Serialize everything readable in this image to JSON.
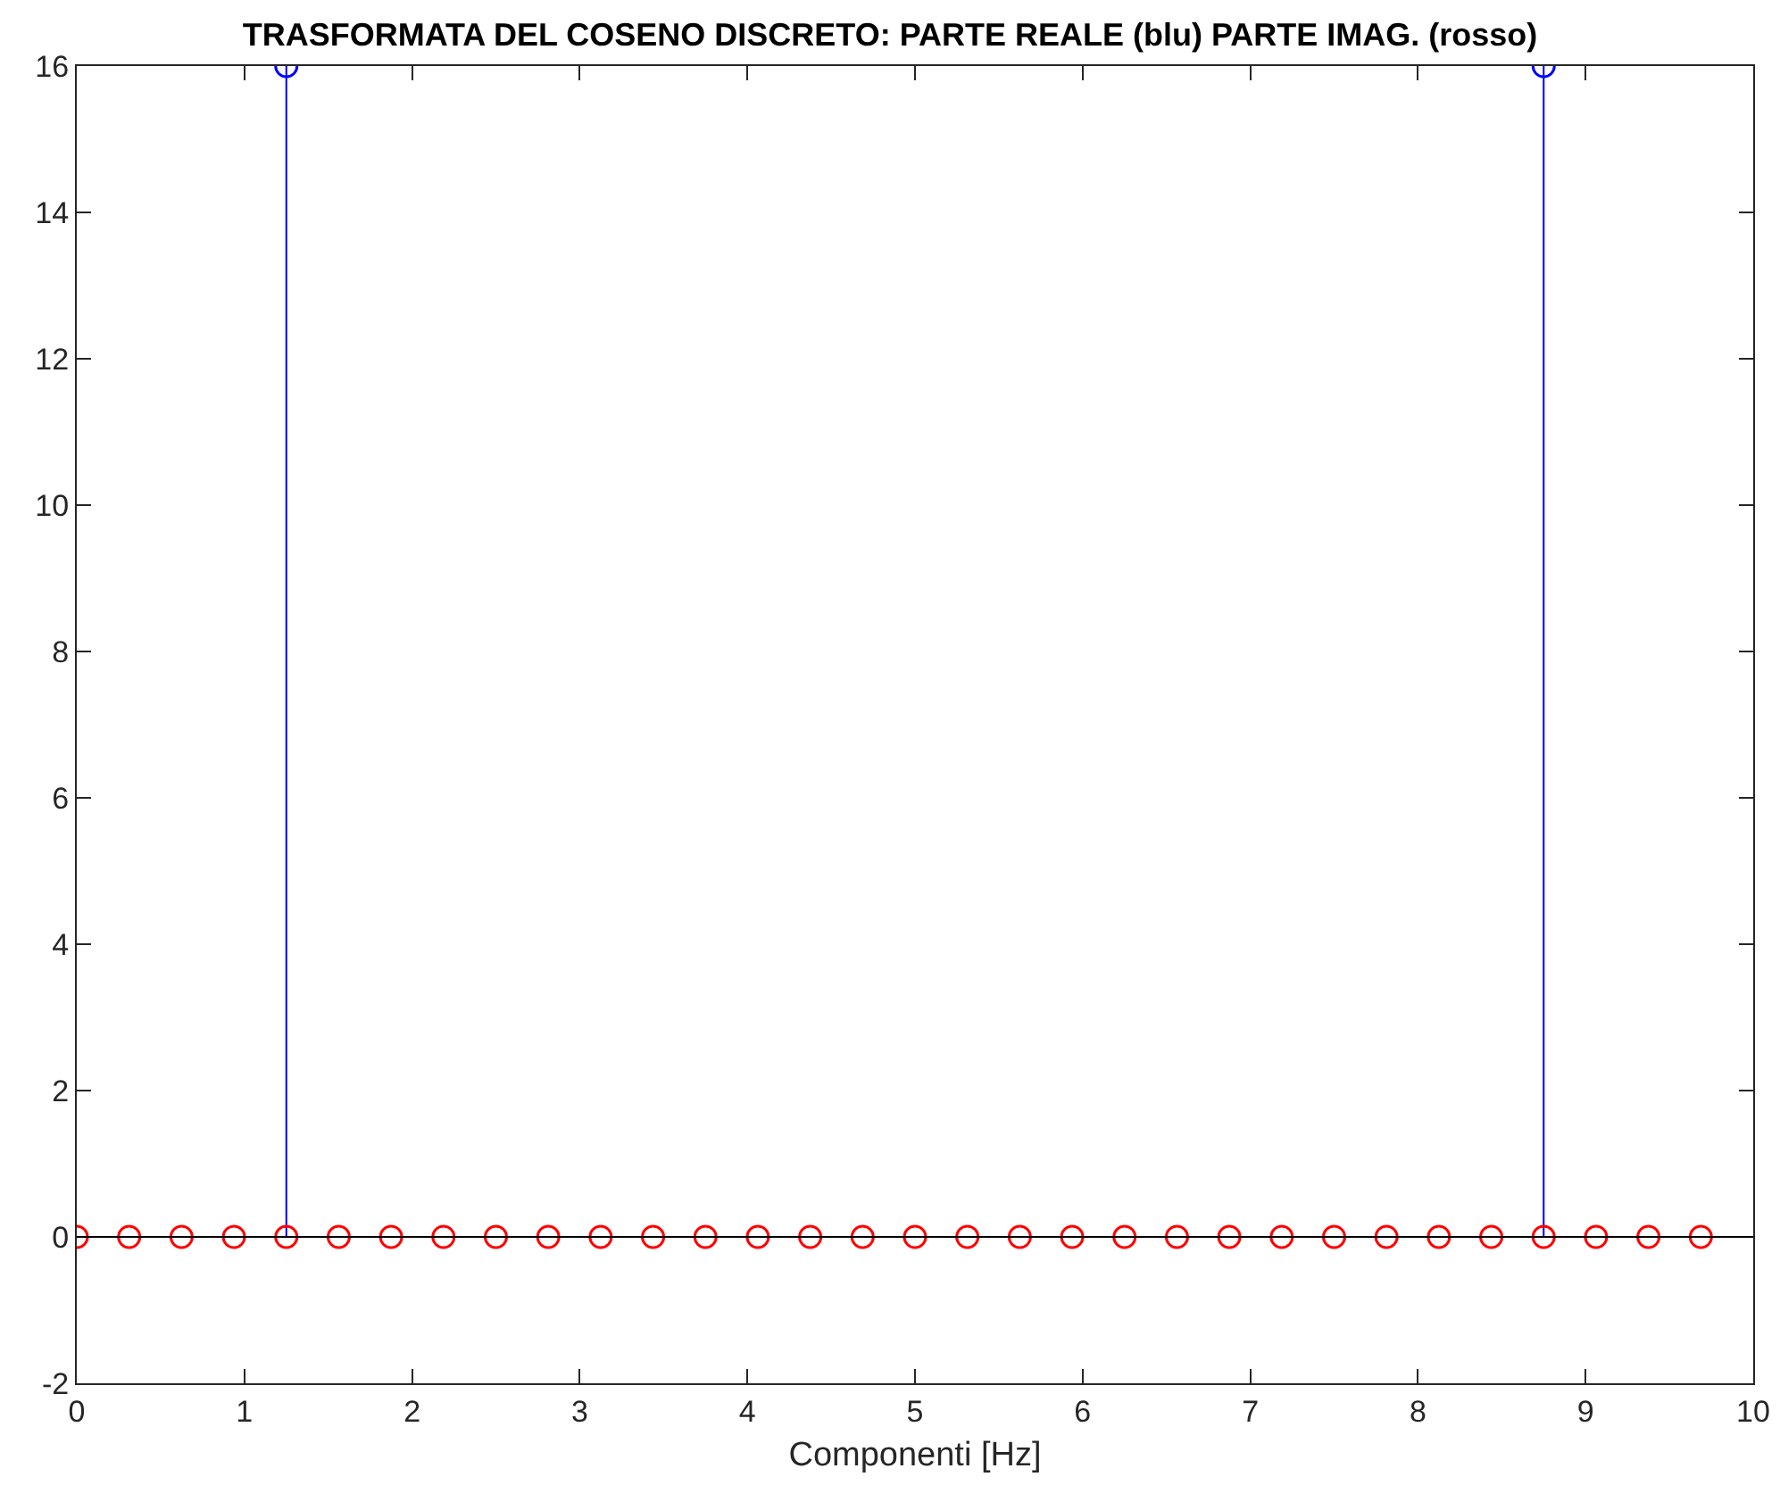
{
  "chart_data": {
    "type": "lollipop",
    "title": "TRASFORMATA DEL COSENO DISCRETO: PARTE REALE (blu) PARTE IMAG. (rosso)",
    "xlabel": "Componenti [Hz]",
    "x": [
      0,
      0.3125,
      0.625,
      0.9375,
      1.25,
      1.5625,
      1.875,
      2.1875,
      2.5,
      2.8125,
      3.125,
      3.4375,
      3.75,
      4.0625,
      4.375,
      4.6875,
      5,
      5.3125,
      5.625,
      5.9375,
      6.25,
      6.5625,
      6.875,
      7.1875,
      7.5,
      7.8125,
      8.125,
      8.4375,
      8.75,
      9.0625,
      9.375,
      9.6875
    ],
    "series": [
      {
        "color": "#0000ff",
        "values": [
          null,
          null,
          null,
          null,
          16,
          null,
          null,
          null,
          null,
          null,
          null,
          null,
          null,
          null,
          null,
          null,
          null,
          null,
          null,
          null,
          null,
          null,
          null,
          null,
          null,
          null,
          null,
          null,
          16,
          null,
          null,
          null
        ]
      },
      {
        "color": "#ff0000",
        "values": [
          0,
          0,
          0,
          0,
          0,
          0,
          0,
          0,
          0,
          0,
          0,
          0,
          0,
          0,
          0,
          0,
          0,
          0,
          0,
          0,
          0,
          0,
          0,
          0,
          0,
          0,
          0,
          0,
          0,
          0,
          0,
          0
        ]
      }
    ],
    "xlim": [
      0,
      10
    ],
    "xticks": [
      0,
      1,
      2,
      3,
      4,
      5,
      6,
      7,
      8,
      9,
      10
    ],
    "ylim": [
      -2,
      16
    ],
    "yticks": [
      -2,
      0,
      2,
      4,
      6,
      8,
      10,
      12,
      14,
      16
    ],
    "ref_lines": [
      {
        "axis": "y",
        "value": 0,
        "color": "#000000"
      }
    ],
    "grid": false,
    "marker": "circle"
  }
}
